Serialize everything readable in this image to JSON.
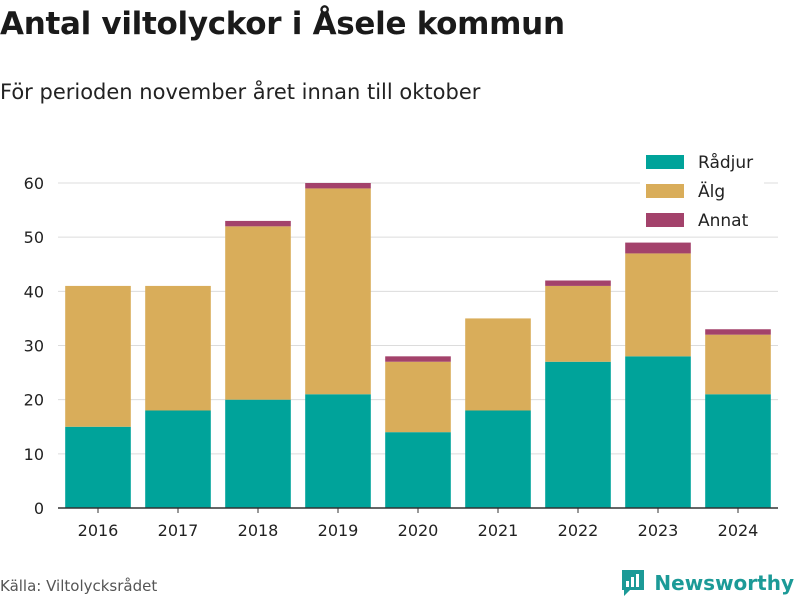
{
  "header": {
    "title": "Antal viltolyckor i Åsele kommun",
    "subtitle": "För perioden november året innan till oktober"
  },
  "footer": {
    "source": "Källa: Viltolycksrådet",
    "brand": "Newsworthy",
    "brand_icon": "bar-chart-logo-icon"
  },
  "chart_data": {
    "type": "bar",
    "stacked": true,
    "categories": [
      "2016",
      "2017",
      "2018",
      "2019",
      "2020",
      "2021",
      "2022",
      "2023",
      "2024"
    ],
    "series": [
      {
        "name": "Rådjur",
        "color": "#00a39a",
        "values": [
          15,
          18,
          20,
          21,
          14,
          18,
          27,
          28,
          21
        ]
      },
      {
        "name": "Älg",
        "color": "#d9ad5a",
        "values": [
          26,
          23,
          32,
          38,
          13,
          17,
          14,
          19,
          11
        ]
      },
      {
        "name": "Annat",
        "color": "#a3426b",
        "values": [
          0,
          0,
          1,
          1,
          1,
          0,
          1,
          2,
          1
        ]
      }
    ],
    "ylim": [
      0,
      60
    ],
    "yticks": [
      0,
      10,
      20,
      30,
      40,
      50,
      60
    ],
    "grid": true,
    "legend_position": "top-right"
  }
}
